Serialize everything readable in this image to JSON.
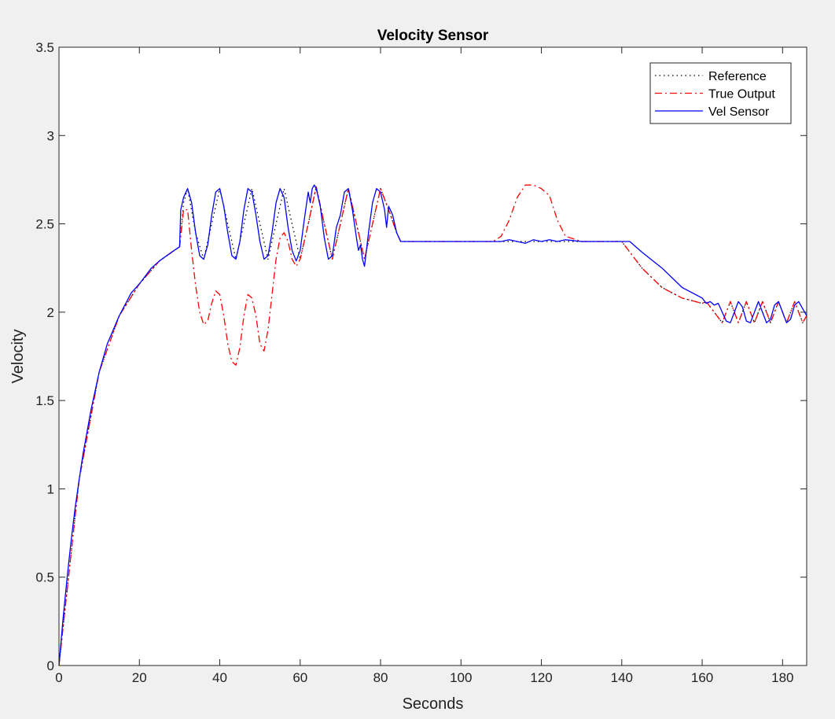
{
  "chart_data": {
    "type": "line",
    "title": "Velocity Sensor",
    "xlabel": "Seconds",
    "ylabel": "Velocity",
    "xlim": [
      0,
      186
    ],
    "ylim": [
      0,
      3.5
    ],
    "xticks": [
      "0",
      "20",
      "40",
      "60",
      "80",
      "100",
      "120",
      "140",
      "160",
      "180"
    ],
    "yticks": [
      "0",
      "0.5",
      "1",
      "1.5",
      "2",
      "2.5",
      "3",
      "3.5"
    ],
    "grid": false,
    "legend_position": "top-right",
    "colors": {
      "reference": "#000000",
      "true_output": "#ff0000",
      "vel_sensor": "#0000ff",
      "background": "#f0f0f0",
      "plot_area": "#ffffff"
    },
    "series": [
      {
        "name": "Reference",
        "style": "dotted",
        "x": [
          0,
          5,
          10,
          15,
          20,
          25,
          30,
          31,
          32,
          34,
          36,
          38,
          40,
          42,
          44,
          46,
          48,
          50,
          52,
          54,
          56,
          58,
          60,
          62,
          64,
          66,
          68,
          70,
          72,
          74,
          76,
          78,
          80,
          82,
          84,
          85,
          90,
          100,
          110,
          120,
          130,
          140,
          145,
          150,
          155,
          160,
          161,
          163,
          165,
          167,
          169,
          171,
          173,
          175,
          177,
          179,
          181,
          183,
          185,
          186
        ],
        "y": [
          0,
          1.05,
          1.66,
          1.98,
          2.16,
          2.29,
          2.37,
          2.62,
          2.7,
          2.45,
          2.3,
          2.5,
          2.7,
          2.5,
          2.3,
          2.5,
          2.7,
          2.5,
          2.3,
          2.5,
          2.7,
          2.5,
          2.3,
          2.5,
          2.71,
          2.5,
          2.3,
          2.5,
          2.7,
          2.5,
          2.3,
          2.5,
          2.7,
          2.58,
          2.45,
          2.4,
          2.4,
          2.4,
          2.4,
          2.4,
          2.4,
          2.4,
          2.25,
          2.14,
          2.08,
          2.05,
          2.06,
          2.0,
          1.94,
          2.06,
          1.94,
          2.06,
          1.94,
          2.06,
          1.94,
          2.06,
          1.94,
          2.06,
          1.94,
          1.98
        ]
      },
      {
        "name": "True Output",
        "style": "dashdot",
        "x": [
          0,
          5,
          10,
          15,
          20,
          25,
          30,
          31,
          32,
          33,
          34,
          35,
          36,
          37,
          38,
          39,
          40,
          41,
          42,
          43,
          44,
          45,
          46,
          47,
          48,
          49,
          50,
          51,
          52,
          53,
          54,
          55,
          56,
          57,
          58,
          59,
          60,
          62,
          64,
          66,
          68,
          70,
          72,
          74,
          76,
          78,
          80,
          82,
          84,
          85,
          90,
          100,
          108,
          110,
          112,
          114,
          116,
          118,
          120,
          122,
          124,
          126,
          130,
          140,
          145,
          150,
          155,
          160,
          161,
          163,
          165,
          167,
          169,
          171,
          173,
          175,
          177,
          179,
          181,
          183,
          185,
          186
        ],
        "y": [
          0,
          1.05,
          1.66,
          1.98,
          2.16,
          2.29,
          2.37,
          2.58,
          2.58,
          2.35,
          2.15,
          2.0,
          1.93,
          1.95,
          2.05,
          2.12,
          2.1,
          1.98,
          1.82,
          1.72,
          1.7,
          1.8,
          1.98,
          2.1,
          2.08,
          1.98,
          1.82,
          1.78,
          1.9,
          2.1,
          2.3,
          2.42,
          2.45,
          2.4,
          2.3,
          2.26,
          2.3,
          2.5,
          2.71,
          2.5,
          2.3,
          2.5,
          2.7,
          2.5,
          2.3,
          2.5,
          2.7,
          2.58,
          2.45,
          2.4,
          2.4,
          2.4,
          2.4,
          2.43,
          2.52,
          2.65,
          2.72,
          2.72,
          2.7,
          2.66,
          2.52,
          2.43,
          2.4,
          2.4,
          2.25,
          2.14,
          2.08,
          2.05,
          2.06,
          2.0,
          1.94,
          2.06,
          1.94,
          2.06,
          1.94,
          2.06,
          1.94,
          2.06,
          1.94,
          2.06,
          1.94,
          1.98
        ]
      },
      {
        "name": "Vel Sensor",
        "style": "solid",
        "x": [
          0,
          1,
          2,
          3,
          4,
          5,
          6,
          8,
          10,
          12,
          15,
          18,
          20,
          23,
          25,
          28,
          30,
          30.3,
          31,
          32,
          33,
          34,
          35,
          36,
          37,
          38,
          39,
          40,
          41,
          42,
          43,
          44,
          45,
          46,
          47,
          48,
          49,
          50,
          51,
          52,
          53,
          54,
          55,
          56,
          57,
          58,
          59,
          60,
          61,
          62,
          62.5,
          63,
          63.5,
          64,
          65,
          66,
          67,
          68,
          69,
          70,
          71,
          72,
          73,
          74,
          74.5,
          75,
          75.5,
          76,
          77,
          78,
          79,
          80,
          81,
          81.5,
          82,
          83,
          84,
          85,
          90,
          100,
          105,
          110,
          112,
          114,
          116,
          118,
          120,
          122,
          124,
          126,
          130,
          135,
          140,
          142,
          145,
          150,
          155,
          160,
          161,
          162,
          163,
          164,
          165,
          166,
          167,
          168,
          169,
          170,
          171,
          172,
          173,
          174,
          175,
          176,
          177,
          178,
          179,
          180,
          181,
          182,
          183,
          184,
          185,
          186
        ],
        "y": [
          0,
          0.26,
          0.49,
          0.7,
          0.89,
          1.05,
          1.2,
          1.45,
          1.66,
          1.82,
          1.98,
          2.11,
          2.16,
          2.25,
          2.29,
          2.34,
          2.37,
          2.58,
          2.65,
          2.7,
          2.62,
          2.45,
          2.32,
          2.3,
          2.38,
          2.55,
          2.68,
          2.7,
          2.6,
          2.45,
          2.32,
          2.3,
          2.4,
          2.58,
          2.7,
          2.68,
          2.55,
          2.4,
          2.3,
          2.32,
          2.45,
          2.62,
          2.7,
          2.65,
          2.48,
          2.35,
          2.29,
          2.35,
          2.52,
          2.68,
          2.62,
          2.7,
          2.72,
          2.7,
          2.6,
          2.42,
          2.3,
          2.32,
          2.48,
          2.55,
          2.68,
          2.7,
          2.58,
          2.42,
          2.35,
          2.38,
          2.3,
          2.26,
          2.45,
          2.62,
          2.7,
          2.68,
          2.58,
          2.48,
          2.6,
          2.55,
          2.45,
          2.4,
          2.4,
          2.4,
          2.4,
          2.4,
          2.41,
          2.4,
          2.39,
          2.41,
          2.4,
          2.41,
          2.4,
          2.41,
          2.4,
          2.4,
          2.4,
          2.4,
          2.34,
          2.25,
          2.14,
          2.08,
          2.05,
          2.06,
          2.04,
          2.05,
          2.0,
          1.95,
          1.94,
          2.0,
          2.06,
          2.03,
          1.95,
          1.94,
          2.0,
          2.06,
          2.0,
          1.94,
          1.96,
          2.04,
          2.06,
          2.0,
          1.94,
          1.96,
          2.04,
          2.06,
          2.02,
          1.98
        ]
      }
    ]
  }
}
